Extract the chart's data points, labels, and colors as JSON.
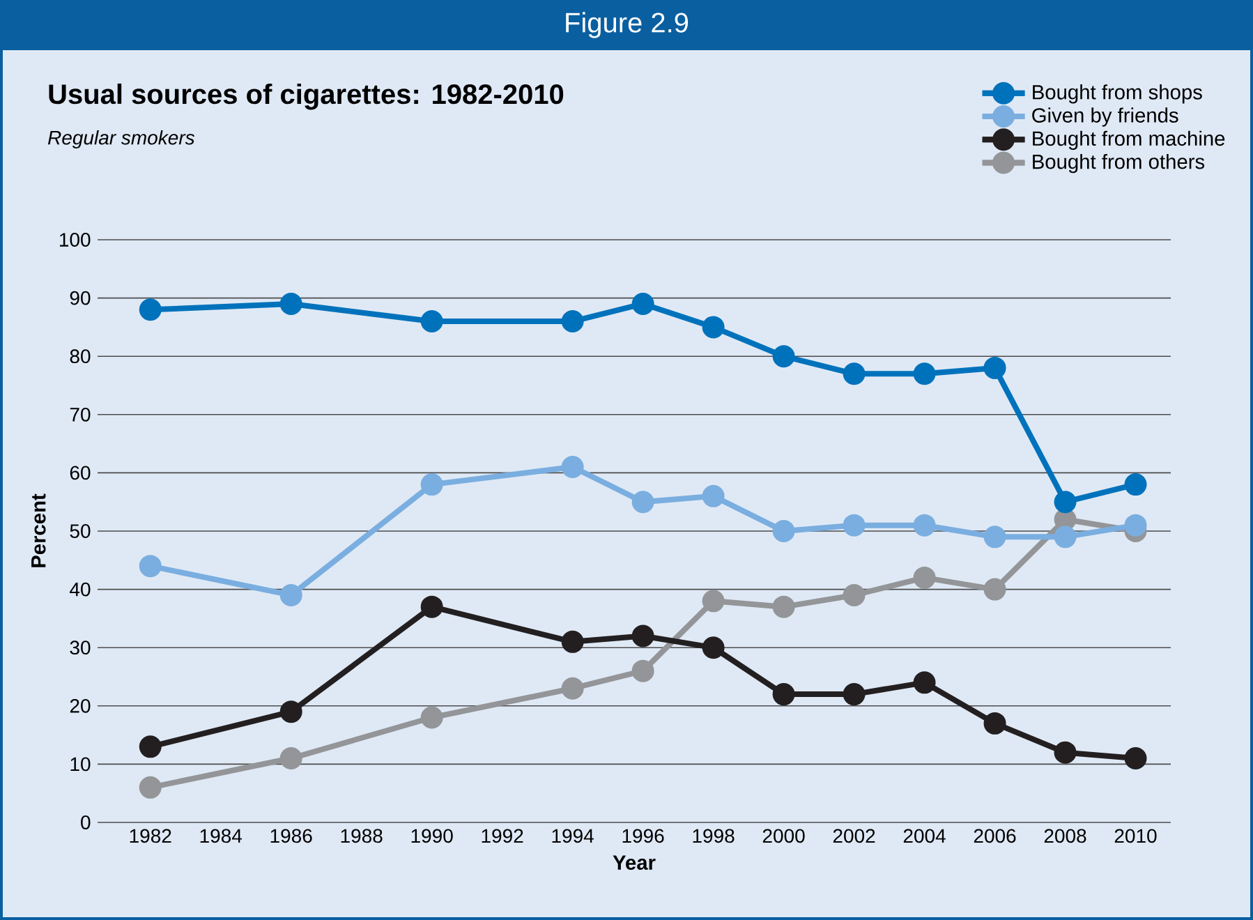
{
  "chart_data": {
    "type": "line",
    "title": "Usual sources of cigarettes: 1982-2010",
    "subtitle": "Regular smokers",
    "annotations": [
      "Figure 2.9"
    ],
    "xlabel": "Year",
    "ylabel": "Percent",
    "x": [
      1982,
      1986,
      1990,
      1994,
      1996,
      1998,
      2000,
      2002,
      2004,
      2006,
      2008,
      2010
    ],
    "series": [
      {
        "name": "Bought from shops",
        "color": "#0072bc",
        "values": [
          88,
          89,
          86,
          86,
          89,
          85,
          80,
          77,
          77,
          78,
          55,
          58
        ]
      },
      {
        "name": "Given by friends",
        "color": "#7aaee0",
        "values": [
          44,
          39,
          58,
          61,
          55,
          56,
          50,
          51,
          51,
          49,
          49,
          51
        ]
      },
      {
        "name": "Bought from machine",
        "color": "#231f20",
        "values": [
          13,
          19,
          37,
          31,
          32,
          30,
          22,
          22,
          24,
          17,
          12,
          11
        ]
      },
      {
        "name": "Bought from others",
        "color": "#939598",
        "values": [
          6,
          11,
          18,
          23,
          26,
          38,
          37,
          39,
          42,
          40,
          52,
          50
        ]
      }
    ],
    "xlim": [
      1980.5,
      2011
    ],
    "xticks": [
      1982,
      1984,
      1986,
      1988,
      1990,
      1992,
      1994,
      1996,
      1998,
      2000,
      2002,
      2004,
      2006,
      2008,
      2010
    ],
    "ylim": [
      0,
      100
    ],
    "yticks": [
      0,
      10,
      20,
      30,
      40,
      50,
      60,
      70,
      80,
      90,
      100
    ],
    "grid": "y",
    "legend": "top right",
    "marker": "circle",
    "line_style": "solid"
  }
}
